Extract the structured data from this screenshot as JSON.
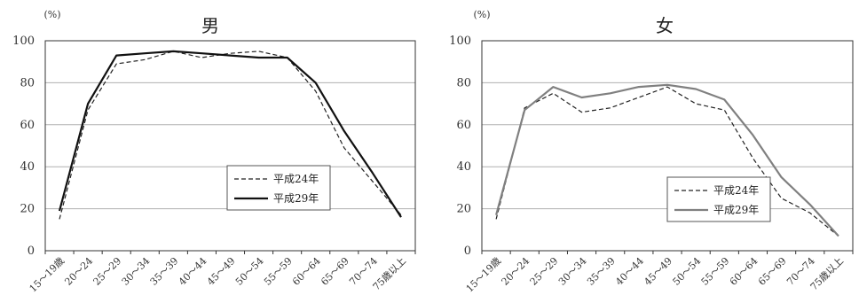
{
  "chart_data": [
    {
      "type": "line",
      "title": "男",
      "ylabel": "(%)",
      "xlabel": "",
      "ylim": [
        0,
        100
      ],
      "yticks": [
        0,
        20,
        40,
        60,
        80,
        100
      ],
      "grid": true,
      "legend_position": "bottom-right",
      "categories": [
        "15～19歳",
        "20～24",
        "25～29",
        "30～34",
        "35～39",
        "40～44",
        "45～49",
        "50～54",
        "55～59",
        "60～64",
        "65～69",
        "70～74",
        "75歳以上"
      ],
      "series": [
        {
          "name": "平成24年",
          "style": "dashed",
          "color": "#222222",
          "values": [
            15,
            67,
            89,
            91,
            95,
            92,
            94,
            95,
            92,
            76,
            49,
            33,
            17
          ]
        },
        {
          "name": "平成29年",
          "style": "solid",
          "color": "#111111",
          "values": [
            19,
            70,
            93,
            94,
            95,
            94,
            93,
            92,
            92,
            80,
            57,
            37,
            16
          ]
        }
      ]
    },
    {
      "type": "line",
      "title": "女",
      "ylabel": "(%)",
      "xlabel": "",
      "ylim": [
        0,
        100
      ],
      "yticks": [
        0,
        20,
        40,
        60,
        80,
        100
      ],
      "grid": true,
      "legend_position": "bottom-right",
      "categories": [
        "15～19歳",
        "20～24",
        "25～29",
        "30～34",
        "35～39",
        "40～44",
        "45～49",
        "50～54",
        "55～59",
        "60～64",
        "65～69",
        "70～74",
        "75歳以上"
      ],
      "series": [
        {
          "name": "平成24年",
          "style": "dashed",
          "color": "#222222",
          "values": [
            15,
            68,
            75,
            66,
            68,
            73,
            78,
            70,
            67,
            44,
            25,
            18,
            7
          ]
        },
        {
          "name": "平成29年",
          "style": "solid",
          "color": "#808080",
          "values": [
            17,
            67,
            78,
            73,
            75,
            78,
            79,
            77,
            72,
            55,
            35,
            22,
            7
          ]
        }
      ]
    }
  ]
}
